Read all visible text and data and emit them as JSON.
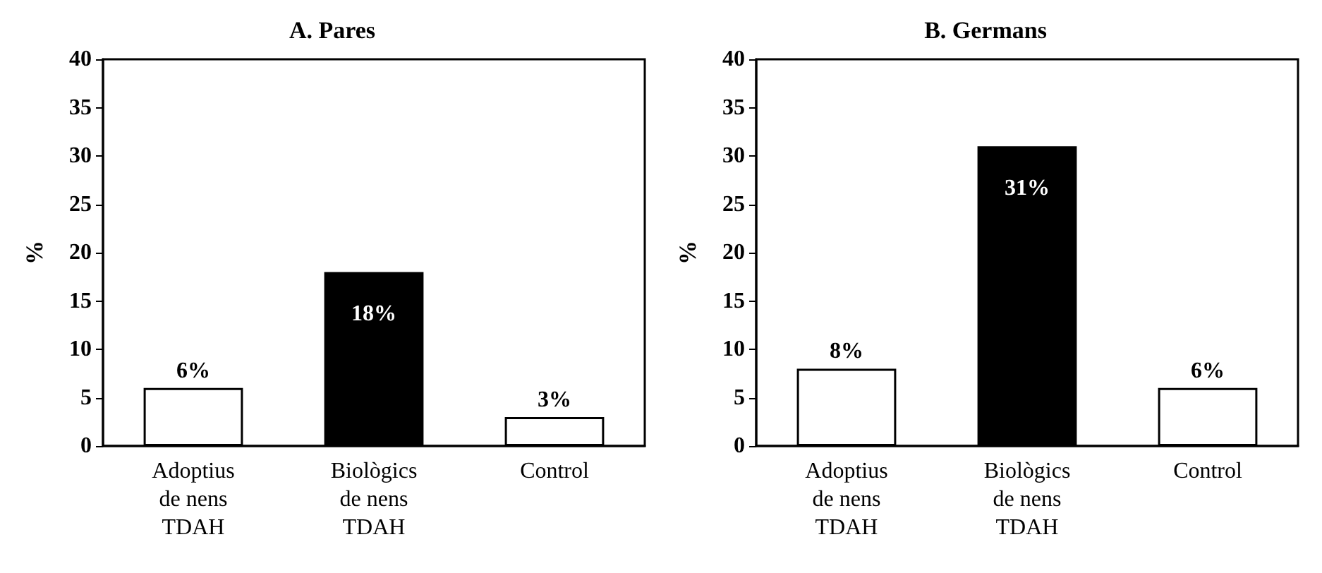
{
  "chart_data": [
    {
      "type": "bar",
      "title": "A. Pares",
      "ylabel": "%",
      "categories": [
        "Adoptius\nde nens\nTDAH",
        "Biològics\nde nens\nTDAH",
        "Control"
      ],
      "values": [
        6,
        18,
        3
      ],
      "colors": [
        "#ffffff",
        "#000000",
        "#ffffff"
      ],
      "value_labels": [
        "6%",
        "18%",
        "3%"
      ],
      "ylim": [
        0,
        40
      ],
      "yticks": [
        0,
        5,
        10,
        15,
        20,
        25,
        30,
        35,
        40
      ]
    },
    {
      "type": "bar",
      "title": "B. Germans",
      "ylabel": "%",
      "categories": [
        "Adoptius\nde nens\nTDAH",
        "Biològics\nde nens\nTDAH",
        "Control"
      ],
      "values": [
        8,
        31,
        6
      ],
      "colors": [
        "#ffffff",
        "#000000",
        "#ffffff"
      ],
      "value_labels": [
        "8%",
        "31%",
        "6%"
      ],
      "ylim": [
        0,
        40
      ],
      "yticks": [
        0,
        5,
        10,
        15,
        20,
        25,
        30,
        35,
        40
      ]
    }
  ]
}
